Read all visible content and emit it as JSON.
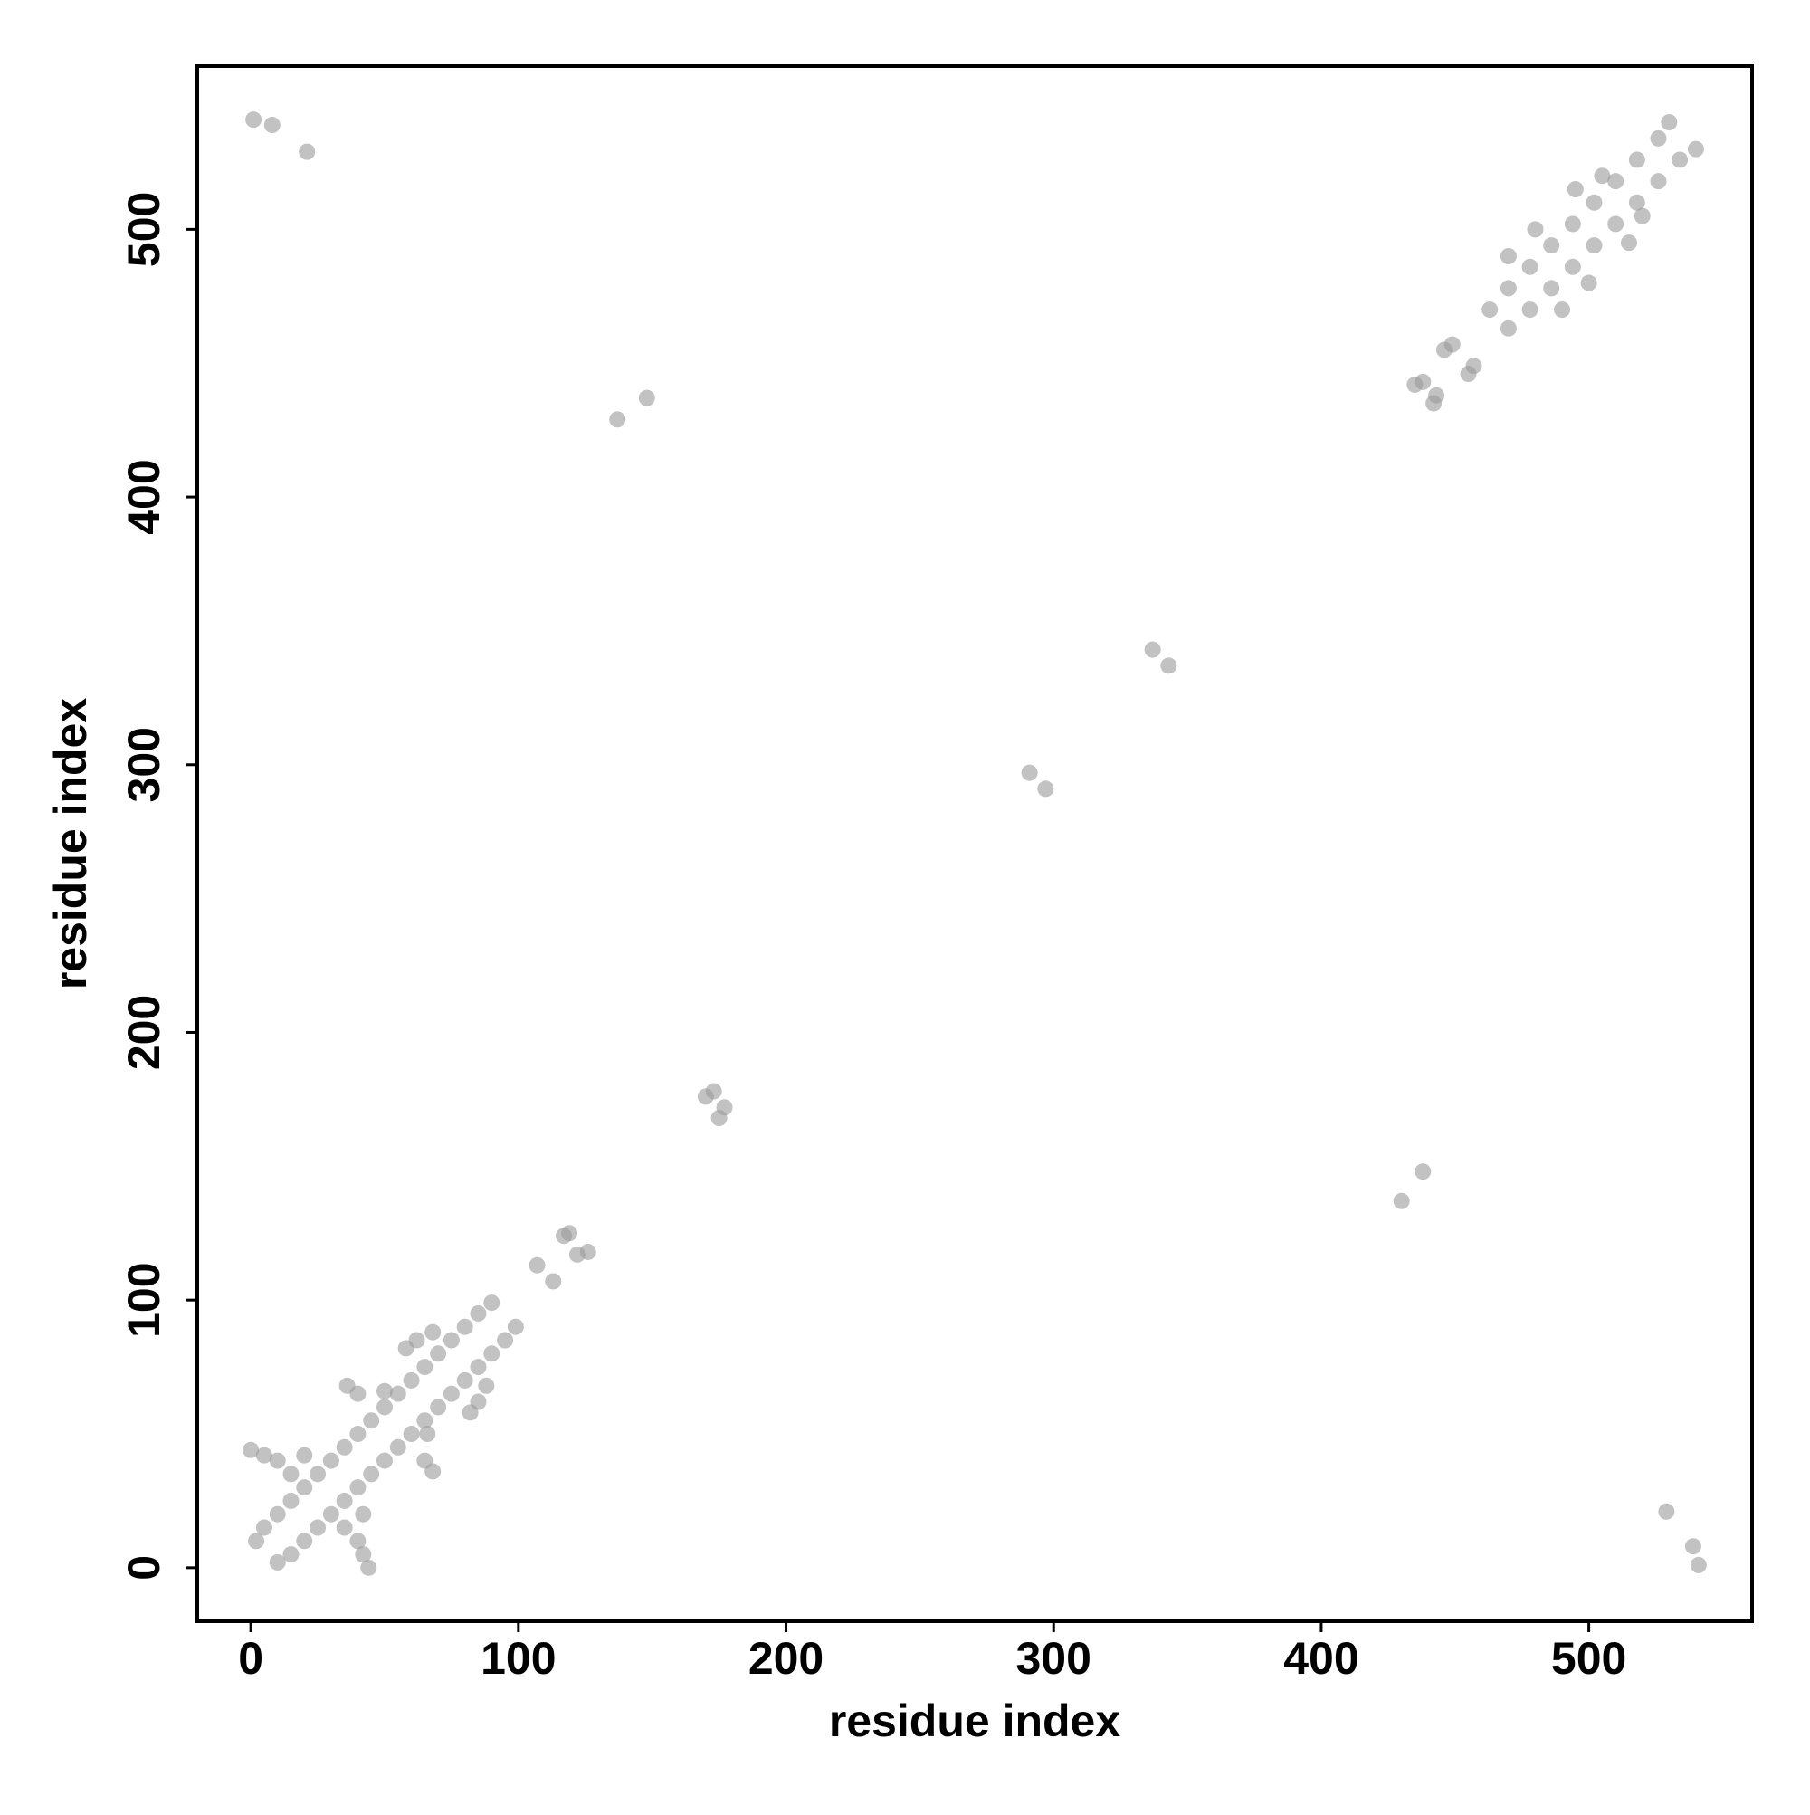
{
  "chart_data": {
    "type": "scatter",
    "xlabel": "residue index",
    "ylabel": "residue index",
    "xlim": [
      -20,
      561
    ],
    "ylim": [
      -20,
      561
    ],
    "xticks": [
      0,
      100,
      200,
      300,
      400,
      500
    ],
    "yticks": [
      0,
      100,
      200,
      300,
      400,
      500
    ],
    "series": [
      {
        "color": "#999999",
        "x": [
          2,
          5,
          10,
          15,
          20,
          25,
          30,
          35,
          40,
          45,
          50,
          55,
          60,
          65,
          70,
          75,
          80,
          85,
          90,
          62,
          68,
          36,
          40,
          5,
          0,
          10,
          20,
          15,
          50,
          58,
          10,
          15,
          20,
          25,
          30,
          35,
          40,
          45,
          50,
          55,
          60,
          65,
          70,
          75,
          80,
          85,
          90,
          95,
          99,
          85,
          88,
          68,
          65,
          42,
          44,
          40,
          42,
          35,
          66,
          82,
          107,
          113,
          117,
          119,
          122,
          126,
          170,
          173,
          175,
          177,
          291,
          297,
          337,
          343,
          137,
          148,
          430,
          438,
          1,
          8,
          21,
          529,
          539,
          541,
          435,
          438,
          446,
          449,
          463,
          470,
          478,
          486,
          494,
          502,
          510,
          518,
          526,
          530,
          480,
          505,
          470,
          495,
          442,
          443,
          455,
          457,
          470,
          478,
          486,
          494,
          502,
          510,
          518,
          526,
          534,
          540,
          500,
          520,
          490,
          515
        ],
        "values": [
          10,
          15,
          20,
          25,
          30,
          35,
          40,
          45,
          50,
          55,
          60,
          65,
          70,
          75,
          80,
          85,
          90,
          95,
          99,
          85,
          88,
          68,
          65,
          42,
          44,
          40,
          42,
          35,
          66,
          82,
          2,
          5,
          10,
          15,
          20,
          25,
          30,
          35,
          40,
          45,
          50,
          55,
          60,
          65,
          70,
          75,
          80,
          85,
          90,
          62,
          68,
          36,
          40,
          5,
          0,
          10,
          20,
          15,
          50,
          58,
          113,
          107,
          124,
          125,
          117,
          118,
          176,
          178,
          168,
          172,
          297,
          291,
          343,
          337,
          429,
          437,
          137,
          148,
          541,
          539,
          529,
          21,
          8,
          1,
          442,
          443,
          455,
          457,
          470,
          478,
          486,
          494,
          502,
          510,
          518,
          526,
          534,
          540,
          500,
          520,
          490,
          515,
          435,
          438,
          446,
          449,
          463,
          470,
          478,
          486,
          494,
          502,
          510,
          518,
          526,
          530,
          480,
          505,
          470,
          495
        ]
      }
    ]
  }
}
